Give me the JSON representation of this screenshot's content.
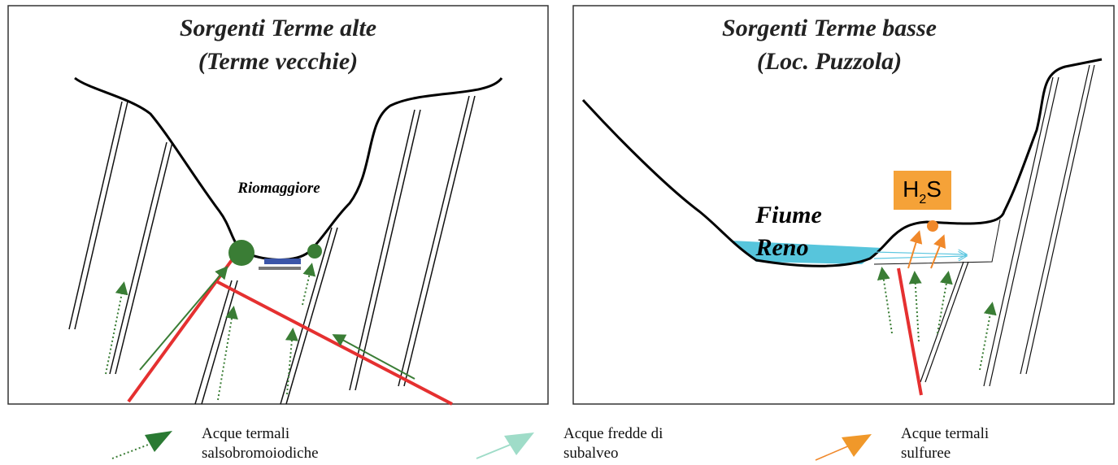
{
  "panels": [
    {
      "title_line1": "Sorgenti Terme alte",
      "title_line2": "(Terme vecchie)",
      "label": "Riomaggiore"
    },
    {
      "title_line1": "Sorgenti Terme basse",
      "title_line2": "(Loc. Puzzola)",
      "river_line1": "Fiume",
      "river_line2": "Reno",
      "gas": "H",
      "gas_sub": "2",
      "gas_after": "S"
    }
  ],
  "legend": [
    {
      "line1": "Acque termali",
      "line2": "salsobromoiodiche"
    },
    {
      "line1": "Acque fredde di",
      "line2": "subalveo"
    },
    {
      "line1": "Acque termali",
      "line2": "sulfuree"
    }
  ]
}
